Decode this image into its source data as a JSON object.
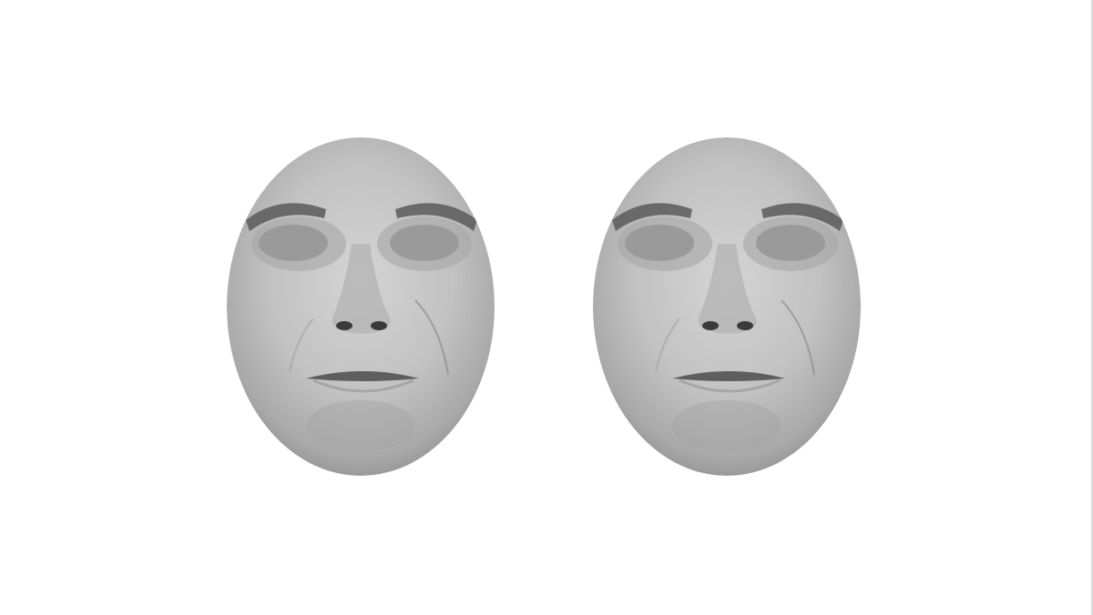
{
  "stimulus": {
    "faces": [
      {
        "id": "face-left",
        "eye_mask_color": "#9a9a9a"
      },
      {
        "id": "face-right",
        "eye_mask_color": "#9a9a9a"
      }
    ],
    "colors": {
      "background": "#ffffff",
      "skin_light": "#cfcfcf",
      "skin_mid": "#b4b4b4",
      "skin_dark": "#8f8f8f",
      "feature_dark": "#3a3a3a"
    }
  }
}
